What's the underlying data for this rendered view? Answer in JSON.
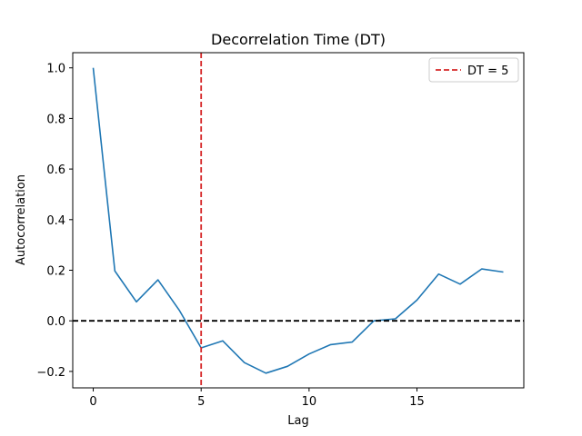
{
  "chart_data": {
    "type": "line",
    "title": "Decorrelation Time (DT)",
    "xlabel": "Lag",
    "ylabel": "Autocorrelation",
    "xlim": [
      -0.95,
      19.95
    ],
    "ylim": [
      -0.265,
      1.06
    ],
    "xticks": [
      0,
      5,
      10,
      15
    ],
    "yticks": [
      -0.2,
      0.0,
      0.2,
      0.4,
      0.6,
      0.8,
      1.0
    ],
    "xtick_labels": [
      "0",
      "5",
      "10",
      "15"
    ],
    "ytick_labels": [
      "−0.2",
      "0.0",
      "0.2",
      "0.4",
      "0.6",
      "0.8",
      "1.0"
    ],
    "grid": false,
    "legend_position": "top-right",
    "series": [
      {
        "x": [
          0,
          1,
          2,
          3,
          4,
          5,
          6,
          7,
          8,
          9,
          10,
          11,
          12,
          13,
          14,
          15,
          16,
          17,
          18,
          19
        ],
        "values": [
          1.0,
          0.197,
          0.075,
          0.162,
          0.04,
          -0.107,
          -0.079,
          -0.165,
          -0.207,
          -0.18,
          -0.131,
          -0.094,
          -0.084,
          0.0,
          0.008,
          0.082,
          0.185,
          0.145,
          0.205,
          0.193
        ],
        "color": "#1f77b4"
      }
    ],
    "reference_lines": [
      {
        "orientation": "vertical",
        "value": 5,
        "color": "#d62728",
        "style": "dashed",
        "legend": "DT = 5"
      },
      {
        "orientation": "horizontal",
        "value": 0,
        "color": "#000000",
        "style": "dashed"
      }
    ]
  }
}
